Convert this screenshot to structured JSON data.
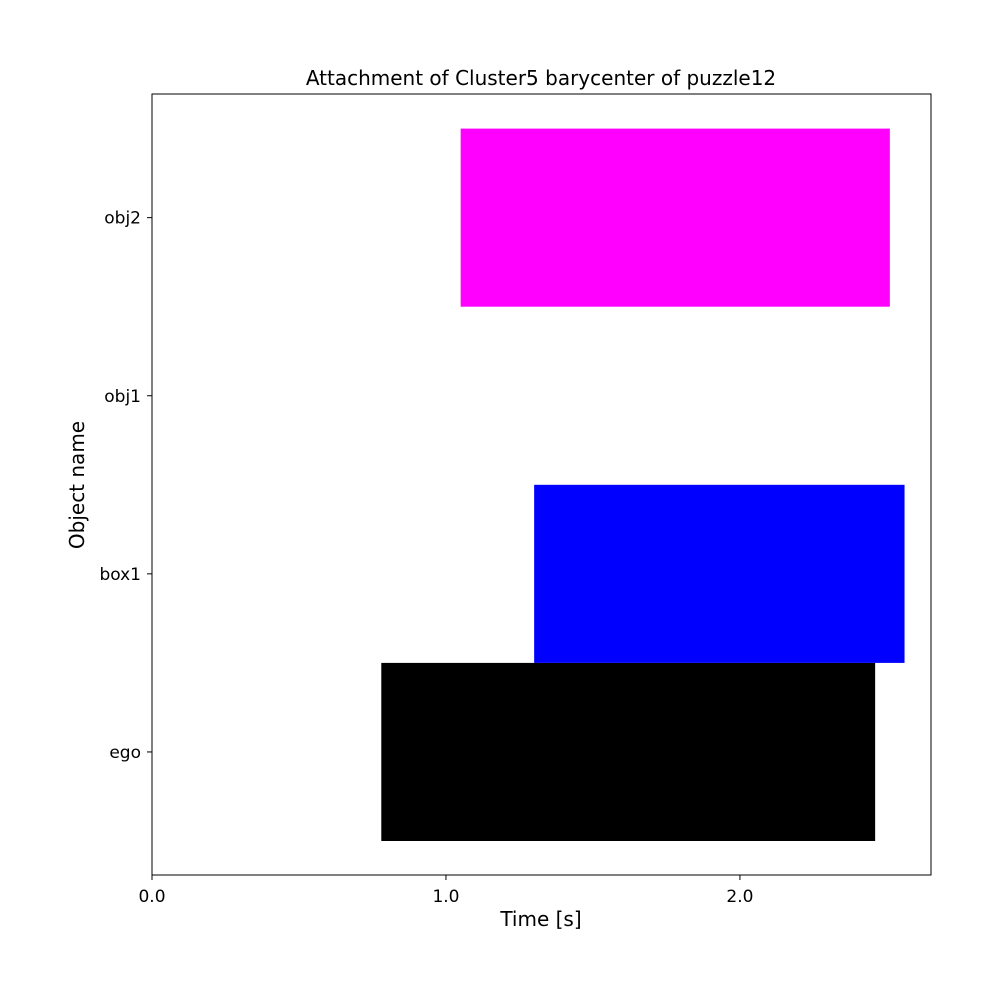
{
  "chart_data": {
    "type": "bar",
    "orientation": "horizontal",
    "title": "Attachment of Cluster5 barycenter of puzzle12",
    "xlabel": "Time [s]",
    "ylabel": "Object name",
    "categories": [
      "ego",
      "box1",
      "obj1",
      "obj2"
    ],
    "xlim": [
      0.0,
      2.65
    ],
    "xticks": [
      "0.0",
      "1.0",
      "2.0"
    ],
    "xtick_values": [
      0.0,
      1.0,
      2.0
    ],
    "grid": false,
    "legend": false,
    "intervals": [
      {
        "category": "ego",
        "start": 0.78,
        "end": 2.46,
        "color": "#000000"
      },
      {
        "category": "box1",
        "start": 1.3,
        "end": 2.56,
        "color": "#0000ff"
      },
      {
        "category": "obj2",
        "start": 1.05,
        "end": 2.51,
        "color": "#ff00ff"
      }
    ]
  }
}
